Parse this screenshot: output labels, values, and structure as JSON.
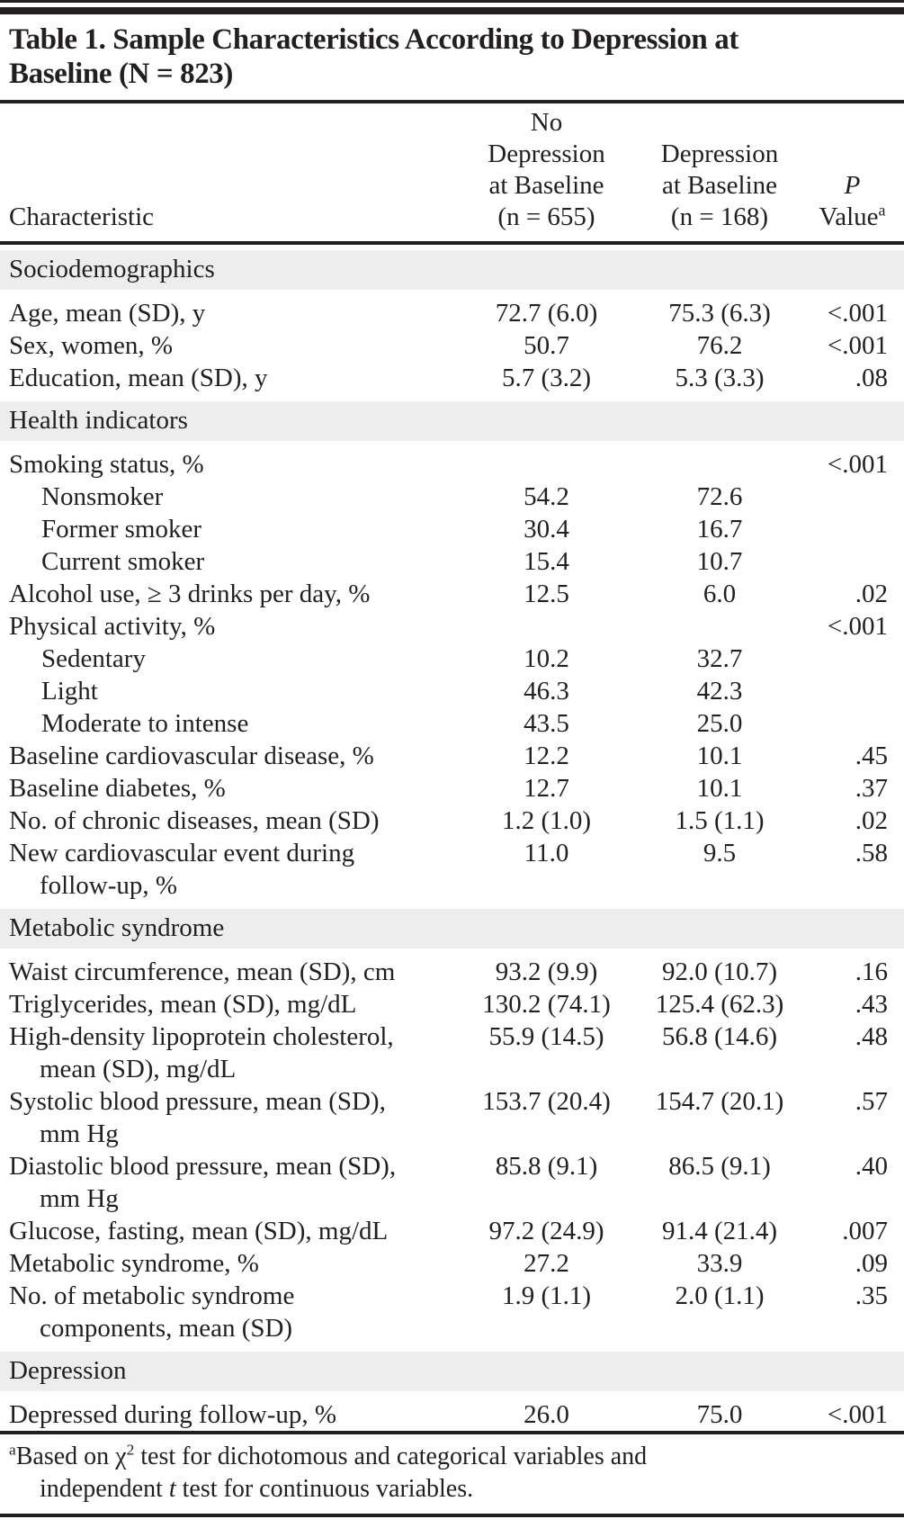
{
  "colors": {
    "text": "#231f20",
    "rule": "#231f20",
    "section_band": "#ededed",
    "page_background": "#ffffff"
  },
  "table": {
    "title": "Table 1. Sample Characteristics According to Depression at\nBaseline (N = 823)",
    "header": {
      "characteristic": "Characteristic",
      "no_depression": "No\nDepression\nat Baseline\n(n = 655)",
      "depression": "Depression\nat Baseline\n(n = 168)",
      "p_italic": "P",
      "p_value_word": "Value",
      "p_sup": "a"
    },
    "rows": [
      {
        "type": "section",
        "label": "Sociodemographics"
      },
      {
        "type": "row",
        "label": "Age, mean (SD), y",
        "no_depression": "72.7 (6.0)",
        "depression": "75.3 (6.3)",
        "p": "<.001"
      },
      {
        "type": "row",
        "label": "Sex, women, %",
        "no_depression": "50.7",
        "depression": "76.2",
        "p": "<.001"
      },
      {
        "type": "row",
        "label": "Education, mean (SD), y",
        "no_depression": "5.7 (3.2)",
        "depression": "5.3 (3.3)",
        "p": ".08"
      },
      {
        "type": "section",
        "label": "Health indicators"
      },
      {
        "type": "row",
        "label": "Smoking status, %",
        "no_depression": "",
        "depression": "",
        "p": "<.001"
      },
      {
        "type": "row",
        "indent": 1,
        "label": "Nonsmoker",
        "no_depression": "54.2",
        "depression": "72.6",
        "p": ""
      },
      {
        "type": "row",
        "indent": 1,
        "label": "Former smoker",
        "no_depression": "30.4",
        "depression": "16.7",
        "p": ""
      },
      {
        "type": "row",
        "indent": 1,
        "label": "Current smoker",
        "no_depression": "15.4",
        "depression": "10.7",
        "p": ""
      },
      {
        "type": "row",
        "label": "Alcohol use, ≥ 3 drinks per day, %",
        "no_depression": "12.5",
        "depression": "6.0",
        "p": ".02"
      },
      {
        "type": "row",
        "label": "Physical activity, %",
        "no_depression": "",
        "depression": "",
        "p": "<.001"
      },
      {
        "type": "row",
        "indent": 1,
        "label": "Sedentary",
        "no_depression": "10.2",
        "depression": "32.7",
        "p": ""
      },
      {
        "type": "row",
        "indent": 1,
        "label": "Light",
        "no_depression": "46.3",
        "depression": "42.3",
        "p": ""
      },
      {
        "type": "row",
        "indent": 1,
        "label": "Moderate to intense",
        "no_depression": "43.5",
        "depression": "25.0",
        "p": ""
      },
      {
        "type": "row",
        "label": "Baseline cardiovascular disease, %",
        "no_depression": "12.2",
        "depression": "10.1",
        "p": ".45"
      },
      {
        "type": "row",
        "label": "Baseline diabetes, %",
        "no_depression": "12.7",
        "depression": "10.1",
        "p": ".37"
      },
      {
        "type": "row",
        "label": "No. of chronic diseases, mean (SD)",
        "no_depression": "1.2 (1.0)",
        "depression": "1.5 (1.1)",
        "p": ".02"
      },
      {
        "type": "row",
        "label": "New cardiovascular event during\nfollow-up, %",
        "no_depression": "11.0",
        "depression": "9.5",
        "p": ".58"
      },
      {
        "type": "section",
        "label": "Metabolic syndrome"
      },
      {
        "type": "row",
        "label": "Waist circumference, mean (SD), cm",
        "no_depression": "93.2 (9.9)",
        "depression": "92.0 (10.7)",
        "p": ".16"
      },
      {
        "type": "row",
        "label": "Triglycerides, mean (SD), mg/dL",
        "no_depression": "130.2 (74.1)",
        "depression": "125.4 (62.3)",
        "p": ".43"
      },
      {
        "type": "row",
        "label": "High-density lipoprotein cholesterol,\nmean (SD), mg/dL",
        "no_depression": "55.9 (14.5)",
        "depression": "56.8 (14.6)",
        "p": ".48"
      },
      {
        "type": "row",
        "label": "Systolic blood pressure, mean (SD),\nmm Hg",
        "no_depression": "153.7 (20.4)",
        "depression": "154.7 (20.1)",
        "p": ".57"
      },
      {
        "type": "row",
        "label": "Diastolic blood pressure, mean (SD),\nmm Hg",
        "no_depression": "85.8 (9.1)",
        "depression": "86.5 (9.1)",
        "p": ".40"
      },
      {
        "type": "row",
        "label": "Glucose, fasting, mean (SD), mg/dL",
        "no_depression": "97.2 (24.9)",
        "depression": "91.4 (21.4)",
        "p": ".007"
      },
      {
        "type": "row",
        "label": "Metabolic syndrome, %",
        "no_depression": "27.2",
        "depression": "33.9",
        "p": ".09"
      },
      {
        "type": "row",
        "label": "No. of metabolic syndrome\ncomponents, mean (SD)",
        "no_depression": "1.9 (1.1)",
        "depression": "2.0 (1.1)",
        "p": ".35"
      },
      {
        "type": "section",
        "label": "Depression"
      },
      {
        "type": "row",
        "label": "Depressed during follow-up, %",
        "no_depression": "26.0",
        "depression": "75.0",
        "p": "<.001"
      }
    ],
    "footnote": {
      "marker": "a",
      "line1_pre_sup": "Based on χ",
      "chi_sup": "2",
      "line1_post": " test for dichotomous and categorical variables and",
      "line2_pre": "independent ",
      "italic_t": "t",
      "line2_post": " test for continuous variables."
    }
  }
}
